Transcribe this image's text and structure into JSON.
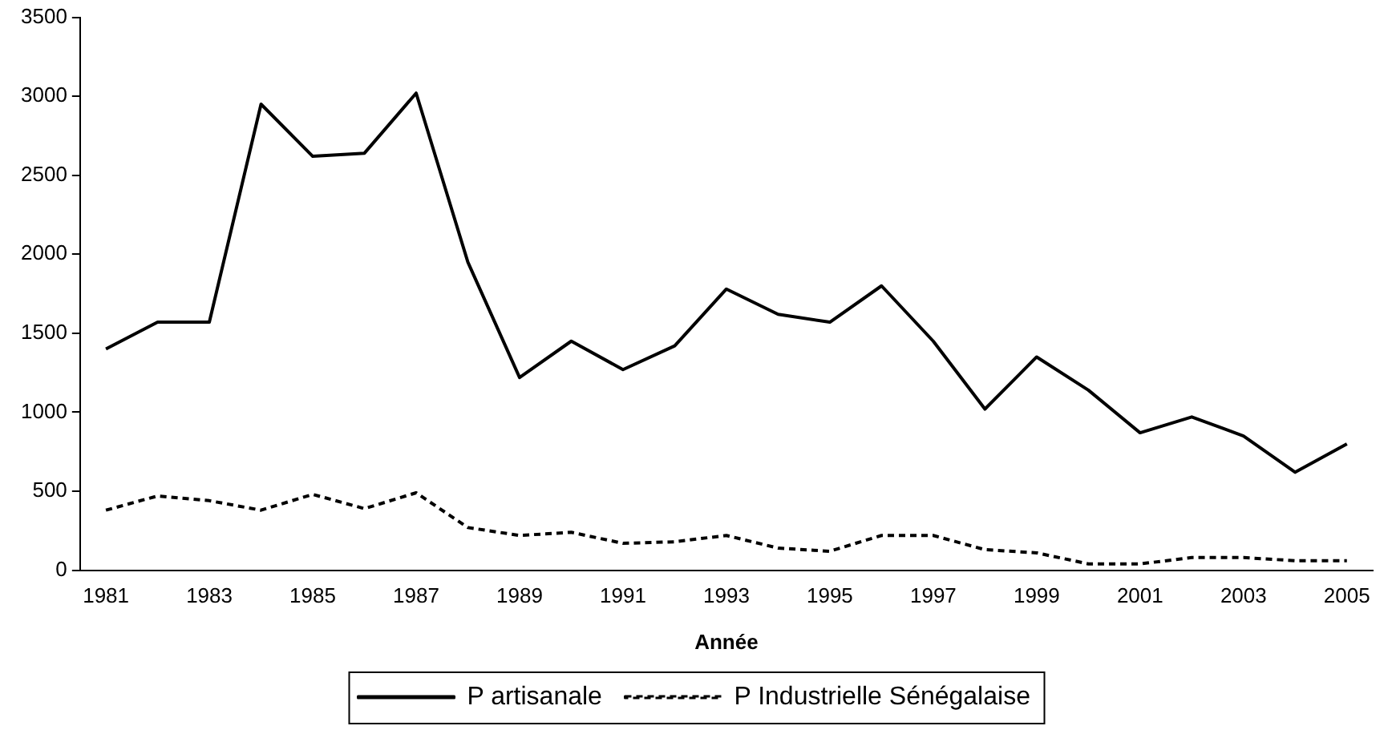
{
  "chart_data": {
    "type": "line",
    "xlabel": "Année",
    "categories": [
      "1981",
      null,
      "1983",
      null,
      "1985",
      null,
      "1987",
      null,
      "1989",
      null,
      "1991",
      null,
      "1993",
      null,
      "1995",
      null,
      "1997",
      null,
      "1999",
      null,
      "2001",
      null,
      "2003",
      null,
      "2005"
    ],
    "series": [
      {
        "name": "P artisanale",
        "color": "#000000",
        "line_style": "solid",
        "values": [
          1400,
          1570,
          1570,
          2950,
          2620,
          2640,
          3020,
          1950,
          1220,
          1450,
          1270,
          1420,
          1780,
          1620,
          1570,
          1800,
          1450,
          1020,
          1350,
          1140,
          870,
          970,
          850,
          620,
          800
        ]
      },
      {
        "name": "P Industrielle Sénégalaise",
        "color": "#000000",
        "line_style": "dashed",
        "values": [
          380,
          470,
          440,
          380,
          480,
          390,
          490,
          270,
          220,
          240,
          170,
          180,
          220,
          140,
          120,
          220,
          220,
          130,
          110,
          40,
          40,
          80,
          80,
          60,
          60
        ]
      }
    ],
    "ylim": [
      0,
      3500
    ],
    "yticks": [
      0,
      500,
      1000,
      1500,
      2000,
      2500,
      3000,
      3500
    ],
    "grid": false,
    "legend": "bottom",
    "marker": "none"
  }
}
